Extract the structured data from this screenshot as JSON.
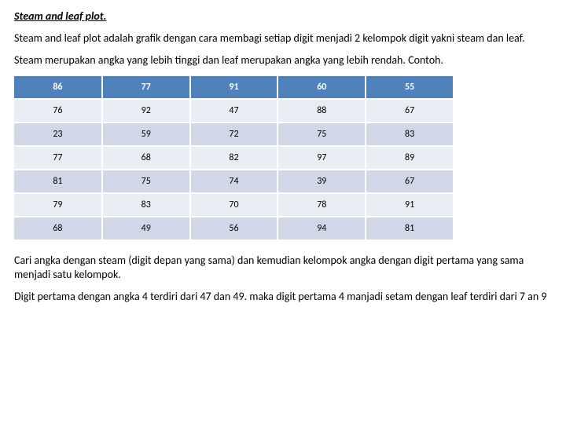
{
  "title": "Steam and leaf plot.",
  "para1": "Steam and leaf plot adalah grafik dengan cara membagi setiap digit menjadi 2 kelompok digit yakni steam dan leaf.",
  "para2": "Steam merupakan angka yang lebih tinggi dan leaf merupakan angka yang lebih rendah. Contoh.",
  "table": {
    "type": "table",
    "header_bg": "#4f81bd",
    "header_color": "#ffffff",
    "row_odd_bg": "#e9edf4",
    "row_even_bg": "#d0d8e8",
    "columns": 5,
    "header": [
      "86",
      "77",
      "91",
      "60",
      "55"
    ],
    "rows": [
      [
        "76",
        "92",
        "47",
        "88",
        "67"
      ],
      [
        "23",
        "59",
        "72",
        "75",
        "83"
      ],
      [
        "77",
        "68",
        "82",
        "97",
        "89"
      ],
      [
        "81",
        "75",
        "74",
        "39",
        "67"
      ],
      [
        "79",
        "83",
        "70",
        "78",
        "91"
      ],
      [
        "68",
        "49",
        "56",
        "94",
        "81"
      ]
    ]
  },
  "para3": "Cari angka dengan steam (digit depan yang sama) dan kemudian kelompok angka dengan digit pertama yang sama menjadi satu kelompok.",
  "para4": "Digit pertama dengan angka 4 terdiri dari 47 dan 49. maka digit pertama 4 manjadi setam dengan leaf terdiri dari 7 an 9"
}
